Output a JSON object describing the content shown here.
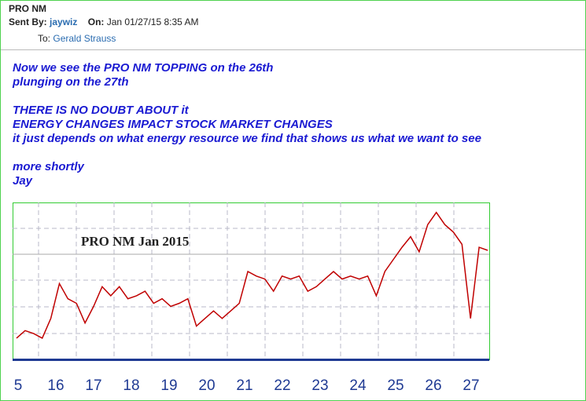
{
  "header": {
    "subject": "PRO NM",
    "sent_by_label": "Sent By:",
    "sender": "jaywiz",
    "on_label": "On:",
    "date": "Jan 01/27/15 8:35 AM",
    "to_label": "To:",
    "recipient": "Gerald Strauss"
  },
  "body": {
    "paragraphs": [
      [
        "Now we see the PRO NM TOPPING on the 26th",
        "plunging on the 27th"
      ],
      [
        "THERE IS NO DOUBT ABOUT it",
        "ENERGY CHANGES IMPACT STOCK MARKET CHANGES",
        "it just depends on what energy resource we find that shows us what we want to see"
      ],
      [
        "more shortly",
        "Jay"
      ]
    ]
  },
  "chart": {
    "type": "line",
    "title": "PRO NM Jan 2015",
    "x_labels": [
      "5",
      "16",
      "17",
      "18",
      "19",
      "20",
      "21",
      "22",
      "23",
      "24",
      "25",
      "26",
      "27"
    ],
    "values": [
      13,
      18,
      16,
      13,
      26,
      49,
      39,
      36,
      23,
      34,
      47,
      41,
      47,
      39,
      41,
      44,
      36,
      39,
      34,
      36,
      39,
      21,
      26,
      31,
      26,
      31,
      36,
      57,
      54,
      52,
      44,
      54,
      52,
      54,
      44,
      47,
      52,
      57,
      52,
      54,
      52,
      54,
      41,
      57,
      65,
      73,
      80,
      70,
      88,
      96,
      88,
      83,
      75,
      26,
      73,
      71
    ],
    "ylim": [
      0,
      100
    ],
    "color": "#c00000"
  }
}
